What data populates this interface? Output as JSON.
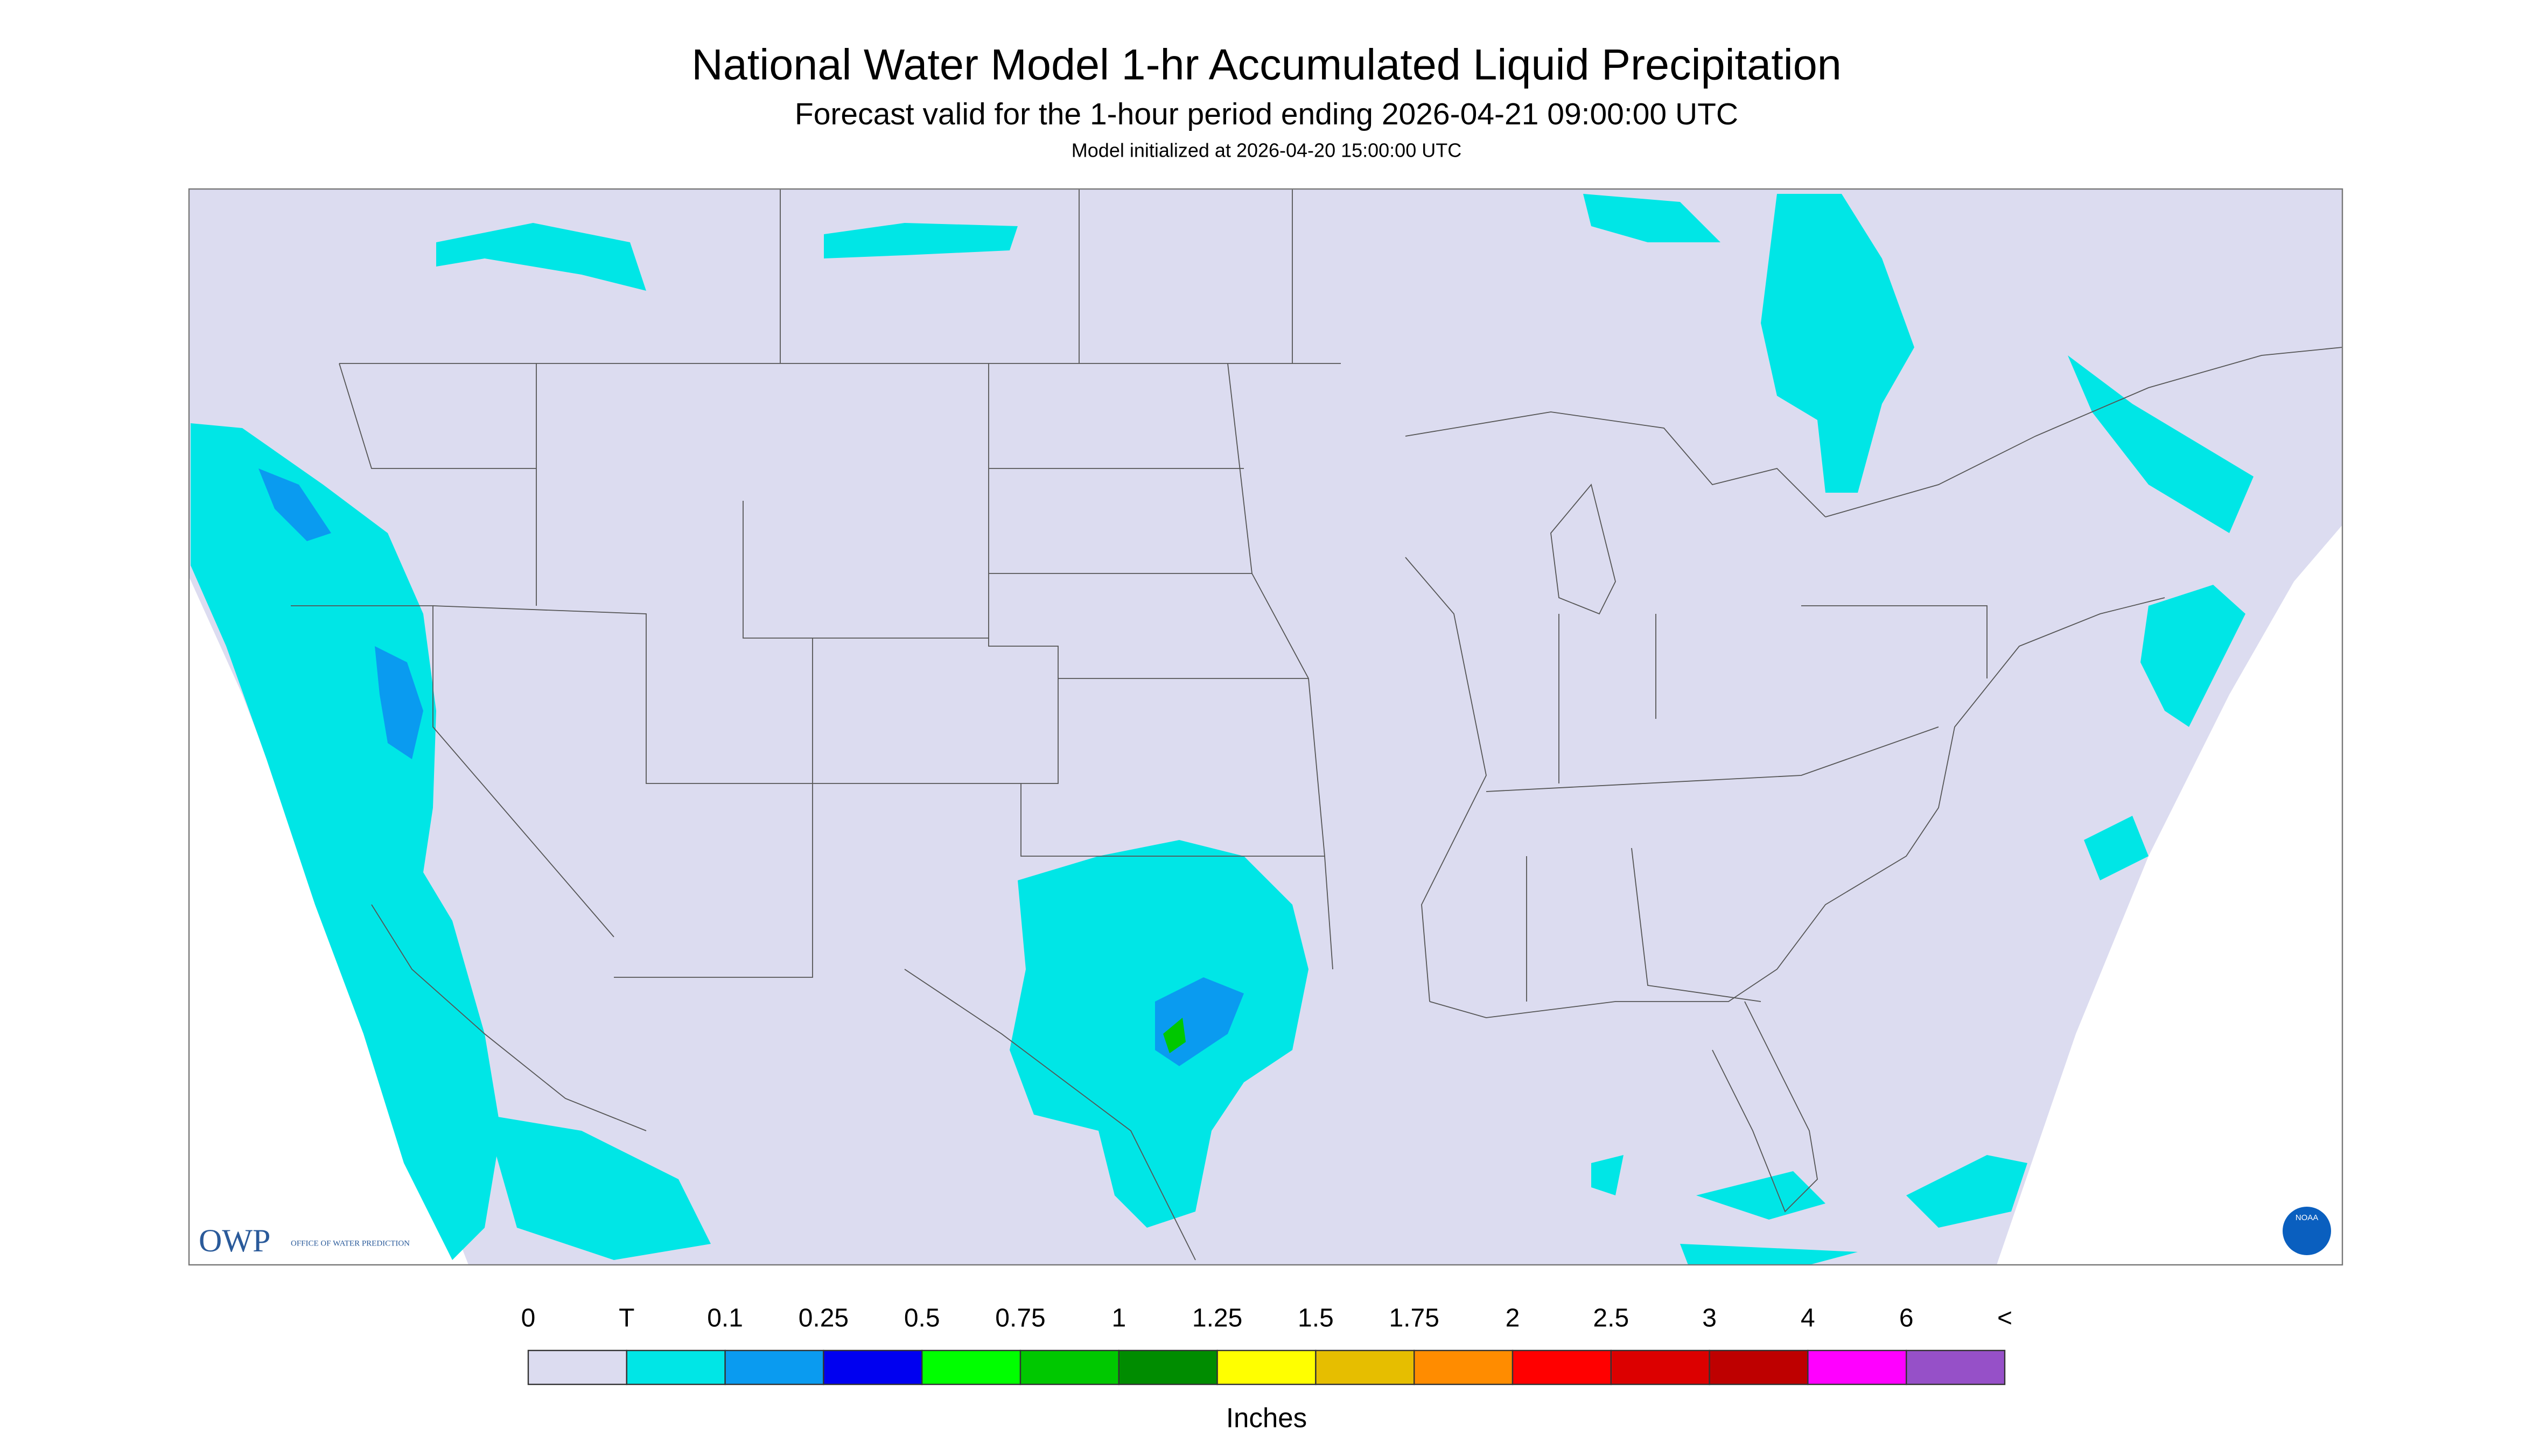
{
  "header": {
    "title": "National Water Model 1-hr Accumulated Liquid Precipitation",
    "subtitle": "Forecast valid for the 1-hour period ending 2026-04-21 09:00:00 UTC",
    "note": "Model initialized at 2026-04-20 15:00:00 UTC"
  },
  "legend": {
    "labels": [
      "0",
      "T",
      "0.1",
      "0.25",
      "0.5",
      "0.75",
      "1",
      "1.25",
      "1.5",
      "1.75",
      "2",
      "2.5",
      "3",
      "4",
      "6",
      "<"
    ],
    "colors": [
      "#dcdcf0",
      "#00e6e6",
      "#0a9bf0",
      "#0000f0",
      "#00ff00",
      "#00c800",
      "#008c00",
      "#ffff00",
      "#e6be00",
      "#ff8c00",
      "#ff0000",
      "#dc0000",
      "#be0000",
      "#ff00ff",
      "#9650c8"
    ],
    "unit": "Inches"
  },
  "logos": {
    "owp": "OWP",
    "owp_text": "OFFICE OF WATER PREDICTION",
    "noaa": "NOAA"
  }
}
